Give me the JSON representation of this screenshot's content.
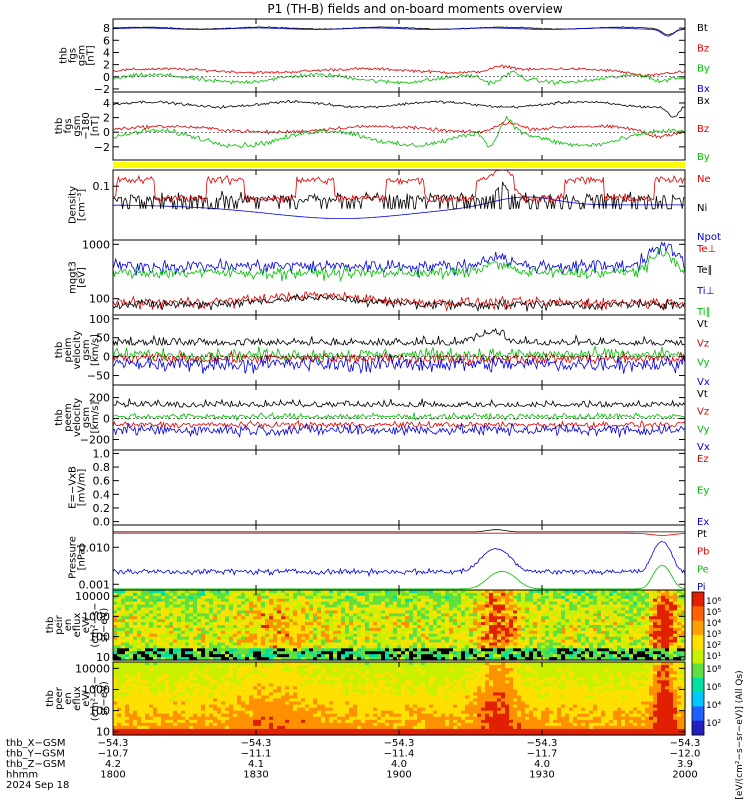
{
  "chart_data": {
    "type": "line",
    "title": "P1 (TH-B) fields and on-board moments overview",
    "panels": [
      {
        "id": "fgs_gsm",
        "ylabel": [
          "thb",
          "fgs",
          "gsm",
          "[nT]"
        ],
        "ylim": [
          -2.5,
          9.5
        ],
        "yticks": [
          {
            "v": 8,
            "t": "8"
          },
          {
            "v": 6,
            "t": "6"
          },
          {
            "v": 4,
            "t": "4"
          },
          {
            "v": 2,
            "t": "2"
          },
          {
            "v": 0,
            "t": "0"
          },
          {
            "v": -2,
            "t": "−2"
          }
        ],
        "legend": [
          {
            "name": "Bt",
            "color": "#000000"
          },
          {
            "name": "Bz",
            "color": "#e00000"
          },
          {
            "name": "By",
            "color": "#00c000"
          },
          {
            "name": "Bx",
            "color": "#0000e0"
          }
        ]
      },
      {
        "id": "fgs_gse",
        "ylabel": [
          "thb",
          "fgs",
          "gsm",
          "−180",
          "[nT]"
        ],
        "ylim": [
          -3.8,
          5.5
        ],
        "yticks": [
          {
            "v": 4,
            "t": "4"
          },
          {
            "v": 2,
            "t": "2"
          },
          {
            "v": 0,
            "t": "0"
          },
          {
            "v": -2,
            "t": "−2"
          }
        ],
        "legend": [
          {
            "name": "Bx",
            "color": "#000000"
          },
          {
            "name": "Bz",
            "color": "#e00000"
          },
          {
            "name": "By",
            "color": "#00c000"
          }
        ]
      },
      {
        "id": "density",
        "ylabel": [
          "Density",
          "[cm⁻³]"
        ],
        "ylim": [
          0.01,
          0.2
        ],
        "log": true,
        "yticks": [
          {
            "v": 0.1,
            "t": "0.1"
          }
        ],
        "legend": [
          {
            "name": "Ne",
            "color": "#e00000"
          },
          {
            "name": "Ni",
            "color": "#000000"
          },
          {
            "name": "Npot",
            "color": "#0000e0"
          }
        ]
      },
      {
        "id": "temp",
        "ylabel": [
          "mqgt3",
          "[eV]"
        ],
        "ylim": [
          50,
          1200
        ],
        "log": true,
        "yticks": [
          {
            "v": 1000,
            "t": "1000"
          },
          {
            "v": 100,
            "t": "100"
          }
        ],
        "legend": [
          {
            "name": "Te⊥",
            "color": "#e00000"
          },
          {
            "name": "Te∥",
            "color": "#000000"
          },
          {
            "name": "Ti⊥",
            "color": "#0000e0"
          },
          {
            "name": "Ti∥",
            "color": "#00c000"
          }
        ]
      },
      {
        "id": "peim_vel",
        "ylabel": [
          "thb",
          "peim",
          "velocity",
          "gsm",
          "[km/s]"
        ],
        "ylim": [
          -75,
          110
        ],
        "yticks": [
          {
            "v": 100,
            "t": "100"
          },
          {
            "v": 50,
            "t": "50"
          },
          {
            "v": 0,
            "t": "0"
          },
          {
            "v": -50,
            "t": "−50"
          }
        ],
        "legend": [
          {
            "name": "Vt",
            "color": "#000000"
          },
          {
            "name": "Vz",
            "color": "#e00000"
          },
          {
            "name": "Vy",
            "color": "#00c000"
          },
          {
            "name": "Vx",
            "color": "#0000e0"
          }
        ]
      },
      {
        "id": "peem_vel",
        "ylabel": [
          "thb",
          "peem",
          "velocity",
          "gsm",
          "[km/s]"
        ],
        "ylim": [
          -300,
          320
        ],
        "yticks": [
          {
            "v": 200,
            "t": "200"
          },
          {
            "v": 0,
            "t": "0"
          },
          {
            "v": -200,
            "t": "−200"
          }
        ],
        "legend": [
          {
            "name": "Vt",
            "color": "#000000"
          },
          {
            "name": "Vz",
            "color": "#e00000"
          },
          {
            "name": "Vy",
            "color": "#00c000"
          },
          {
            "name": "Vx",
            "color": "#0000e0"
          }
        ]
      },
      {
        "id": "efield",
        "ylabel": [
          "E=−VxB",
          "[mV/m]"
        ],
        "ylim": [
          -0.05,
          1.05
        ],
        "yticks": [
          {
            "v": 1.0,
            "t": "1.0"
          },
          {
            "v": 0.8,
            "t": "0.8"
          },
          {
            "v": 0.6,
            "t": "0.6"
          },
          {
            "v": 0.4,
            "t": "0.4"
          },
          {
            "v": 0.2,
            "t": "0.2"
          },
          {
            "v": 0.0,
            "t": "0.0"
          }
        ],
        "legend": [
          {
            "name": "Ez",
            "color": "#e00000"
          },
          {
            "name": "Ey",
            "color": "#00c000"
          },
          {
            "name": "Ex",
            "color": "#0000e0"
          }
        ]
      },
      {
        "id": "pressure",
        "ylabel": [
          "Pressure",
          "[nPa]"
        ],
        "ylim": [
          0.0007,
          0.04
        ],
        "log": true,
        "yticks": [
          {
            "v": 0.01,
            "t": "0.010"
          },
          {
            "v": 0.001,
            "t": "0.001"
          }
        ],
        "legend": [
          {
            "name": "Pt",
            "color": "#000000"
          },
          {
            "name": "Pb",
            "color": "#e00000"
          },
          {
            "name": "Pe",
            "color": "#00c000"
          },
          {
            "name": "Pi",
            "color": "#0000e0"
          }
        ]
      },
      {
        "id": "peir_en",
        "ylabel": [
          "thb",
          "peir",
          "en",
          "eflux",
          "eV/",
          "(cm²−s−",
          "sr−eV)"
        ],
        "ylim": [
          7,
          20000
        ],
        "log": true,
        "yticks": [
          {
            "v": 10000,
            "t": "10000"
          },
          {
            "v": 1000,
            "t": "1000"
          },
          {
            "v": 100,
            "t": "100"
          },
          {
            "v": 10,
            "t": "10"
          }
        ]
      },
      {
        "id": "peer_en",
        "ylabel": [
          "thb",
          "peer",
          "en",
          "eflux",
          "eV/",
          "(cm²−s−",
          "sr−eV)"
        ],
        "ylim": [
          7,
          20000
        ],
        "log": true,
        "yticks": [
          {
            "v": 10000,
            "t": "10000"
          },
          {
            "v": 1000,
            "t": "1000"
          },
          {
            "v": 100,
            "t": "100"
          },
          {
            "v": 10,
            "t": "10"
          }
        ]
      }
    ],
    "x_ticks": [
      "1800",
      "1830",
      "1900",
      "1930",
      "2000"
    ],
    "ephemeris": [
      {
        "label": "thb_X−GSM",
        "values": [
          "−54.3",
          "−54.3",
          "−54.3",
          "−54.3",
          "−54.3"
        ]
      },
      {
        "label": "thb_Y−GSM",
        "values": [
          "−10.7",
          "−11.1",
          "−11.4",
          "−11.7",
          "−12.0"
        ]
      },
      {
        "label": "thb_Z−GSM",
        "values": [
          "4.2",
          "4.1",
          "4.0",
          "4.0",
          "3.9"
        ]
      },
      {
        "label": "hhmm",
        "values": [
          "1800",
          "1830",
          "1900",
          "1930",
          "2000"
        ]
      }
    ],
    "date_label": "2024 Sep 18",
    "colorbar": {
      "label": "[eV/(cm²−s−sr−eV)] (All Qs)",
      "upper_ticks": [
        "10⁶",
        "10⁵",
        "10⁴",
        "10³",
        "10²",
        "10¹"
      ],
      "lower_ticks": [
        "10⁸",
        "10⁶",
        "10⁴",
        "10²"
      ]
    },
    "bar_color": "#ffff00",
    "series_colors": {
      "black": "#000000",
      "red": "#e00000",
      "green": "#00c000",
      "blue": "#0000e0"
    }
  }
}
